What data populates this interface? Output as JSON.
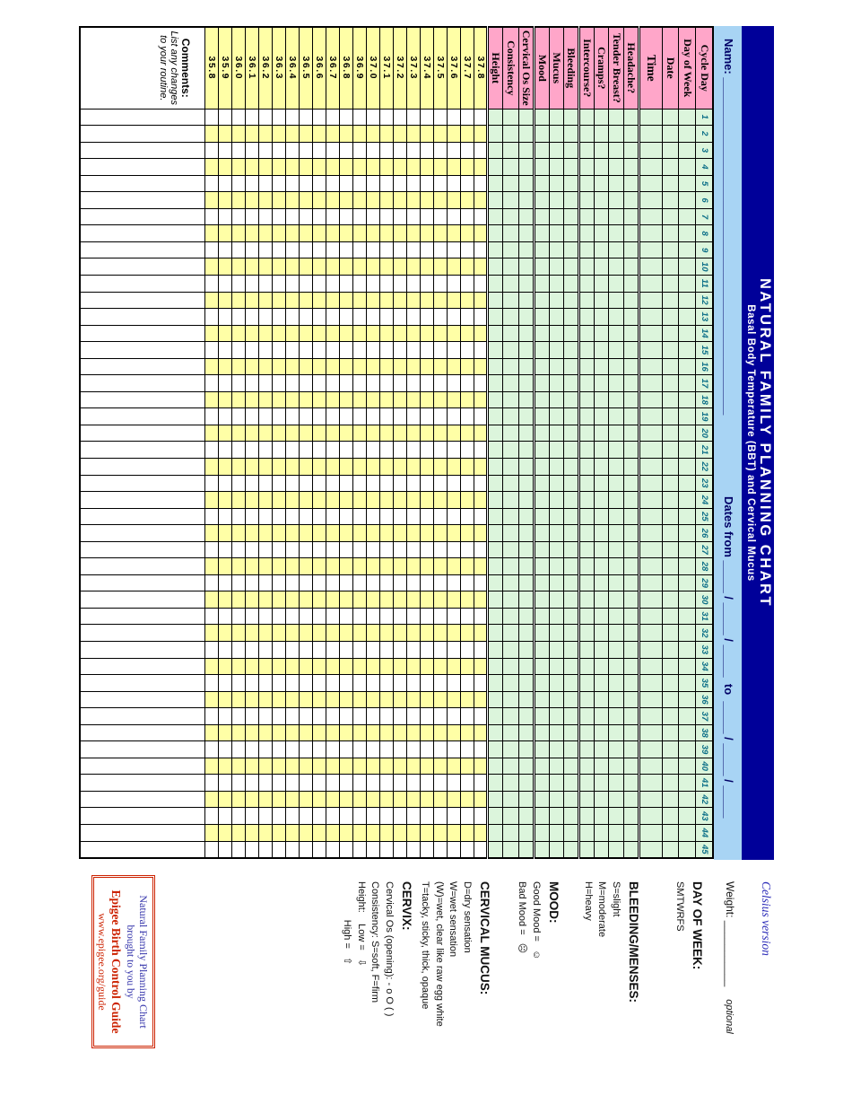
{
  "title": {
    "main": "NATURAL FAMILY PLANNING CHART",
    "subtitle": "Basal Body Temperature (BBT) and Cervical Mucus"
  },
  "name_band": {
    "name_line": "Name: ____________________________________________________",
    "dates_line": "Dates from _____ / _____ / _____  to  _____ / _____ / _____"
  },
  "table": {
    "day_count": 45,
    "rows": [
      {
        "label": "Cycle Day",
        "header_bg": "pink",
        "cell_bg": "green",
        "content": "day_numbers"
      },
      {
        "label": "Day of Week",
        "header_bg": "pink",
        "cell_bg": "green"
      },
      {
        "label": "Date",
        "header_bg": "pink",
        "cell_bg": "green"
      },
      {
        "label": "Time",
        "header_bg": "pink",
        "cell_bg": "green",
        "group_end": true,
        "big": true
      },
      {
        "label": "Headache?",
        "header_bg": "pink",
        "cell_bg": "green"
      },
      {
        "label": "Tender Breast?",
        "header_bg": "pink",
        "cell_bg": "green"
      },
      {
        "label": "Cramps?",
        "header_bg": "pink",
        "cell_bg": "green"
      },
      {
        "label": "Intercourse?",
        "header_bg": "pink",
        "cell_bg": "green",
        "group_end": true
      },
      {
        "label": "Bleeding",
        "header_bg": "pink",
        "cell_bg": "green"
      },
      {
        "label": "Mucus",
        "header_bg": "pink",
        "cell_bg": "green"
      },
      {
        "label": "Mood",
        "header_bg": "pink",
        "cell_bg": "green",
        "group_end": true
      },
      {
        "label": "Cervical Os Size",
        "header_bg": "pink",
        "cell_bg": "green"
      },
      {
        "label": "Consistency",
        "header_bg": "pink",
        "cell_bg": "green"
      },
      {
        "label": "Height",
        "header_bg": "pink",
        "cell_bg": "green",
        "group_end": true
      }
    ],
    "temperatures": [
      "37.8",
      "37.7",
      "37.6",
      "37.5",
      "37.4",
      "37.3",
      "37.2",
      "37.1",
      "37.0",
      "36.9",
      "36.8",
      "36.7",
      "36.6",
      "36.5",
      "36.4",
      "36.3",
      "36.2",
      "36.1",
      "36.0",
      "35.9",
      "35.8"
    ],
    "comments_label": "Comments:",
    "comments_note1": "List any changes",
    "comments_note2": "to your routine."
  },
  "legend": {
    "celsius_note": "Celsius version",
    "weight_label": "Weight: ___________",
    "weight_note": "optional",
    "sections": [
      {
        "heading": "DAY OF WEEK:",
        "lines": [
          "SMTWRFS"
        ]
      },
      {
        "heading": "BLEEDING/MENSES:",
        "lines": [
          "S=slight",
          "M=moderate",
          "H=heavy"
        ]
      },
      {
        "heading": "MOOD:",
        "lines": [
          "Good Mood =   ☺",
          "Bad Mood =   ☹"
        ]
      },
      {
        "heading": "CERVICAL MUCUS:",
        "lines": [
          "D=dry sensation",
          "W=wet sensation",
          "(W)=wet, clear like raw egg white",
          "T=tacky, sticky, thick, opaque"
        ]
      },
      {
        "heading": "CERVIX:",
        "lines": [
          "Cervical Os (opening): - o O ( )",
          "Consistency: S=soft, F=firm",
          "Height:    Low =   ⇩",
          "              High =   ⇧"
        ]
      }
    ]
  },
  "credit_box": {
    "lines": [
      "Natural Family Planning Chart",
      "brought to you by",
      "Epigee Birth Control Guide",
      "www.epigee.org/guide"
    ]
  },
  "colors": {
    "navy": "#000099",
    "band_blue": "#a8d4f4",
    "pink": "#ffa6c9",
    "green": "#dcf5dc",
    "yellow": "#ffffa6",
    "white": "#ffffff",
    "day_number_teal": "#0b6e87",
    "credit_red": "#cc2200",
    "credit_blue": "#3333aa"
  }
}
